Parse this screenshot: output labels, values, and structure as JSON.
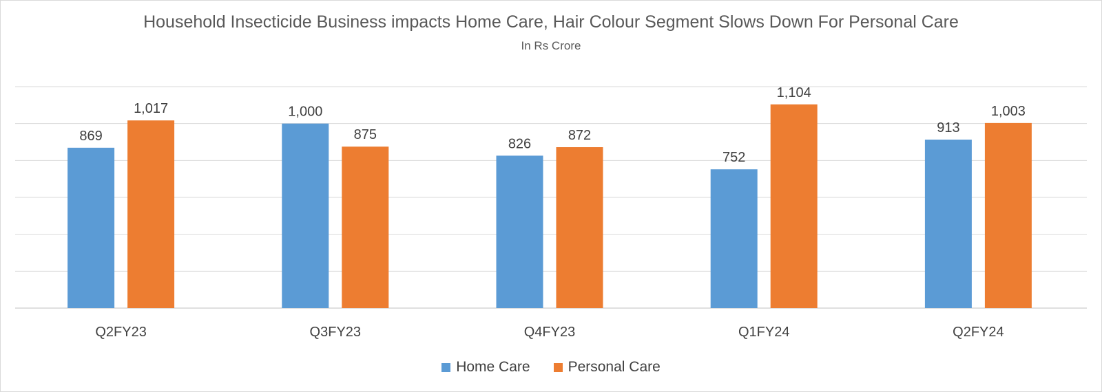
{
  "chart_data": {
    "type": "bar",
    "title": "Household Insecticide Business impacts Home Care, Hair Colour Segment Slows Down For Personal Care",
    "subtitle": "In Rs Crore",
    "categories": [
      "Q2FY23",
      "Q3FY23",
      "Q4FY23",
      "Q1FY24",
      "Q2FY24"
    ],
    "series": [
      {
        "name": "Home Care",
        "color": "#5b9bd5",
        "values": [
          869,
          1000,
          826,
          752,
          913
        ],
        "labels": [
          "869",
          "1,000",
          "826",
          "752",
          "913"
        ]
      },
      {
        "name": "Personal Care",
        "color": "#ed7d31",
        "values": [
          1017,
          875,
          872,
          1104,
          1003
        ],
        "labels": [
          "1,017",
          "875",
          "872",
          "1,104",
          "1,003"
        ]
      }
    ],
    "ylim": [
      0,
      1200
    ],
    "gridlines": true,
    "y_axis_labels_visible": false,
    "legend_position": "bottom"
  }
}
